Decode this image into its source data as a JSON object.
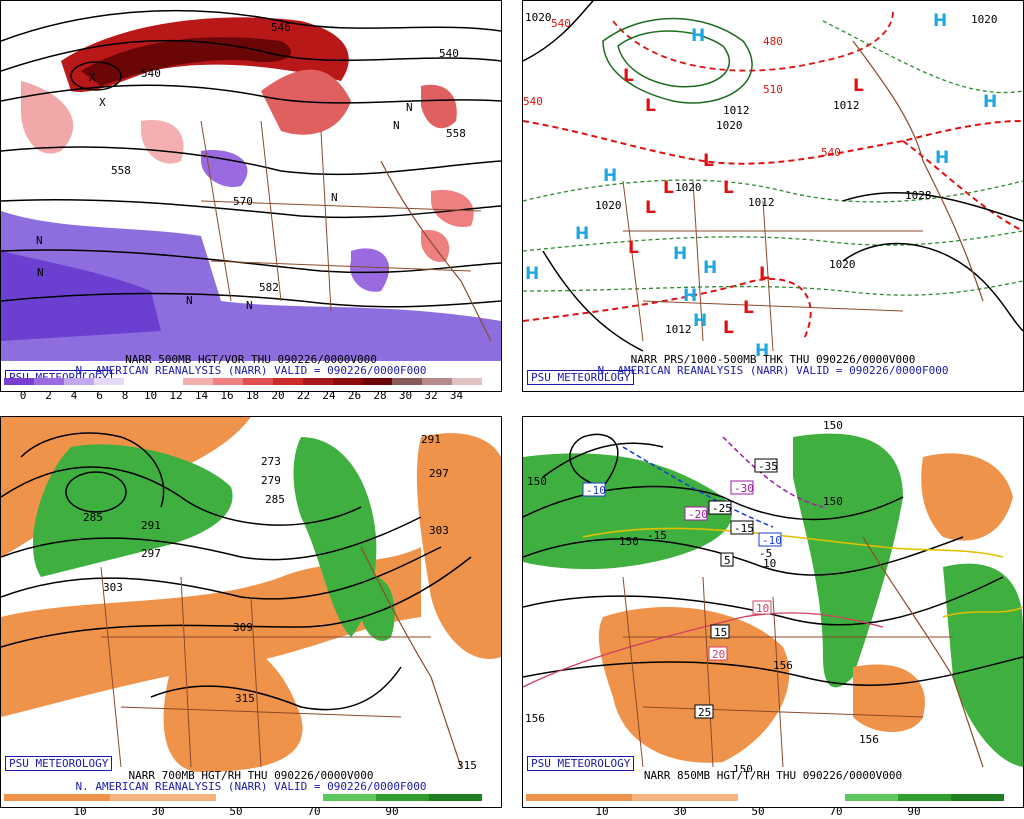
{
  "badge_text": "PSU METEOROLOGY",
  "panels": [
    {
      "caption": "NARR 500MB HGT/VOR THU 090226/0000V000",
      "subcaption": "N. AMERICAN REANALYSIS (NARR) VALID = 090226/0000F000",
      "colorbar": [
        "#7a3fd0",
        "#9a6be0",
        "#c3a8ee",
        "#e4d8f7",
        "#ffffff",
        "#ffffff",
        "#f4b0b0",
        "#ee8080",
        "#e05050",
        "#cc2a2a",
        "#a81a1a",
        "#8a0c0c",
        "#6a0606",
        "#8a5a5a",
        "#b48a8a",
        "#e0c0c0"
      ],
      "ticks": [
        "0",
        "2",
        "4",
        "6",
        "8",
        "10",
        "12",
        "14",
        "16",
        "18",
        "20",
        "22",
        "24",
        "26",
        "28",
        "30",
        "32",
        "34"
      ],
      "contour_labels": [
        "540",
        "558",
        "558",
        "570",
        "582",
        "540",
        "546"
      ],
      "markers": [
        "N",
        "N",
        "N",
        "N",
        "N",
        "N",
        "N",
        "X",
        "X"
      ]
    },
    {
      "caption": "NARR PRS/1000-500MB THK THU 090226/0000V000",
      "subcaption": "N. AMERICAN REANALYSIS (NARR) VALID = 090226/0000F000",
      "isobar_labels": [
        "1020",
        "1020",
        "1012",
        "1012",
        "1020",
        "1020",
        "1012",
        "1028",
        "1020",
        "1012",
        "1020"
      ],
      "thickness_labels": [
        "540",
        "540",
        "510",
        "480",
        "540"
      ],
      "H": "H",
      "L": "L"
    },
    {
      "caption": "NARR 700MB HGT/RH THU 090226/0000V000",
      "subcaption": "N. AMERICAN REANALYSIS (NARR) VALID = 090226/0000F000",
      "colorbar": [
        "#f0934a",
        "#f0934a",
        "#f5b27c",
        "#f5b27c",
        "#ffffff",
        "#ffffff",
        "#5ec85e",
        "#2f9e2f",
        "#1f7e1f"
      ],
      "ticks": [
        "10",
        "30",
        "50",
        "70",
        "90"
      ],
      "contour_labels": [
        "273",
        "279",
        "285",
        "291",
        "297",
        "303",
        "309",
        "315",
        "285",
        "291",
        "297",
        "303",
        "315"
      ]
    },
    {
      "caption": "NARR 850MB HGT/T/RH THU 090226/0000V000",
      "colorbar": [
        "#f0934a",
        "#f0934a",
        "#f5b27c",
        "#f5b27c",
        "#ffffff",
        "#ffffff",
        "#5ec85e",
        "#2f9e2f",
        "#1f7e1f"
      ],
      "ticks": [
        "10",
        "30",
        "50",
        "70",
        "90"
      ],
      "contour_labels": [
        "150",
        "150",
        "156",
        "156",
        "150",
        "156",
        "150",
        "150"
      ],
      "temp_labels": [
        "-10",
        "-30",
        "-35",
        "-20",
        "-25",
        "-15",
        "-10",
        "-5",
        "5",
        "10",
        "15",
        "20",
        "25",
        "-15",
        "10"
      ]
    }
  ]
}
